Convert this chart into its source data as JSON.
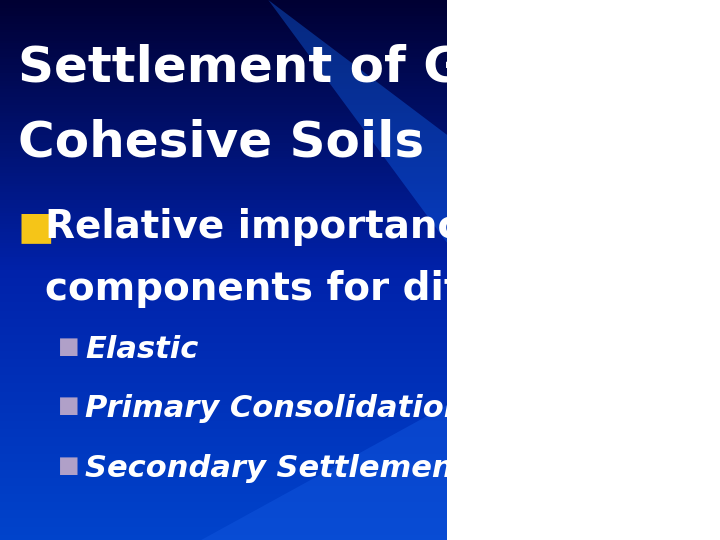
{
  "title_line1": "Settlement of Granular vs.",
  "title_line2": "Cohesive Soils",
  "title_color": "#ffffff",
  "title_fontsize": 36,
  "title_fontstyle": "bold",
  "bullet1_marker_color": "#f5c518",
  "bullet1_text_line1": "Relative importance of settlement",
  "bullet1_text_line2": "components for different soil types",
  "bullet1_fontsize": 28,
  "bullet1_color": "#ffffff",
  "bullet1_fontstyle": "bold",
  "sub_bullet_marker_color": "#b0a0c8",
  "sub_bullets": [
    "Elastic",
    "Primary Consolidation",
    "Secondary Settlement (Creep)"
  ],
  "sub_bullet_fontsize": 22,
  "sub_bullet_color": "#ffffff",
  "sub_bullet_fontstyle": "italic",
  "bg_color_top": "#000033",
  "bg_color_mid": "#0033aa",
  "bg_color_bottom": "#0022cc",
  "figwidth": 7.2,
  "figheight": 5.4,
  "dpi": 100
}
